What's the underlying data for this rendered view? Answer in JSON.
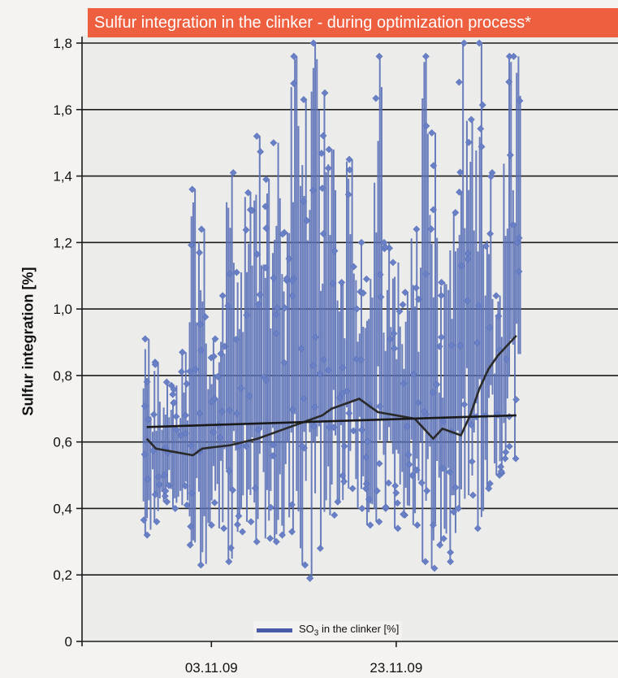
{
  "chart_data": {
    "type": "line",
    "title": "Sulfur integration in the clinker - during optimization process*",
    "ylabel": "Sulfur integration [%]",
    "xlabel": "",
    "ylim": [
      0,
      1.8
    ],
    "yticks": [
      0,
      0.2,
      0.4,
      0.6,
      0.8,
      1.0,
      1.2,
      1.4,
      1.6,
      1.8
    ],
    "ytick_labels": [
      "0",
      "0,2",
      "0,4",
      "0,6",
      "0,8",
      "1,0",
      "1,2",
      "1,4",
      "1,6",
      "1,8"
    ],
    "xlim": [
      "2009-10-20",
      "2009-12-17"
    ],
    "xticks": [
      "2009-11-03",
      "2009-11-23"
    ],
    "xtick_labels": [
      "03.11.09",
      "23.11.09"
    ],
    "grid": "horizontal",
    "legend_position": "bottom-center",
    "series": [
      {
        "name": "SO3 in the clinker [%]",
        "name_prefix": "SO",
        "name_subscript": "3",
        "name_suffix": " in the clinker [%]",
        "color": "#5b72b9",
        "markers": "diamond",
        "x": [
          "2009-10-27",
          "2009-10-28",
          "2009-10-29",
          "2009-10-30",
          "2009-10-31",
          "2009-11-01",
          "2009-11-02",
          "2009-11-03",
          "2009-11-04",
          "2009-11-05",
          "2009-11-06",
          "2009-11-07",
          "2009-11-08",
          "2009-11-09",
          "2009-11-10",
          "2009-11-11",
          "2009-11-12",
          "2009-11-13",
          "2009-11-14",
          "2009-11-15",
          "2009-11-16",
          "2009-11-17",
          "2009-11-18",
          "2009-11-19",
          "2009-11-20",
          "2009-11-21",
          "2009-11-22",
          "2009-11-23",
          "2009-11-24",
          "2009-11-25",
          "2009-11-26",
          "2009-11-27",
          "2009-11-28",
          "2009-11-29",
          "2009-11-30",
          "2009-12-01",
          "2009-12-02",
          "2009-12-03",
          "2009-12-04",
          "2009-12-05",
          "2009-12-06"
        ],
        "min": [
          0.32,
          0.36,
          0.42,
          0.4,
          0.41,
          0.29,
          0.23,
          0.35,
          0.34,
          0.24,
          0.33,
          0.36,
          0.3,
          0.31,
          0.3,
          0.32,
          0.33,
          0.23,
          0.19,
          0.28,
          0.38,
          0.42,
          0.46,
          0.4,
          0.35,
          0.36,
          0.4,
          0.34,
          0.38,
          0.35,
          0.24,
          0.22,
          0.29,
          0.24,
          0.4,
          0.44,
          0.34,
          0.46,
          0.5,
          0.55,
          0.55
        ],
        "max": [
          0.91,
          0.84,
          0.78,
          0.77,
          0.87,
          1.36,
          1.24,
          0.91,
          1.04,
          1.41,
          1.11,
          1.35,
          1.52,
          1.39,
          1.5,
          1.23,
          1.76,
          1.63,
          1.8,
          1.65,
          1.48,
          1.08,
          1.45,
          1.2,
          1.09,
          1.76,
          1.2,
          1.14,
          1.05,
          1.24,
          1.76,
          1.53,
          1.08,
          1.29,
          1.8,
          1.57,
          1.8,
          1.41,
          1.04,
          1.76,
          1.76
        ]
      },
      {
        "name": "",
        "style": "moving-average",
        "color": "#2a2a2a",
        "x": [
          "2009-10-27",
          "2009-10-28",
          "2009-10-30",
          "2009-11-01",
          "2009-11-02",
          "2009-11-05",
          "2009-11-08",
          "2009-11-11",
          "2009-11-13",
          "2009-11-15",
          "2009-11-16",
          "2009-11-18",
          "2009-11-19",
          "2009-11-20",
          "2009-11-21",
          "2009-11-23",
          "2009-11-25",
          "2009-11-26",
          "2009-11-27",
          "2009-11-28",
          "2009-11-29",
          "2009-11-30",
          "2009-12-01",
          "2009-12-02",
          "2009-12-03",
          "2009-12-04",
          "2009-12-05",
          "2009-12-06"
        ],
        "values": [
          0.61,
          0.58,
          0.57,
          0.56,
          0.58,
          0.59,
          0.61,
          0.64,
          0.66,
          0.68,
          0.7,
          0.72,
          0.73,
          0.71,
          0.69,
          0.68,
          0.67,
          0.64,
          0.61,
          0.64,
          0.63,
          0.62,
          0.68,
          0.76,
          0.82,
          0.86,
          0.89,
          0.92
        ]
      },
      {
        "name": "",
        "style": "linear-trend",
        "color": "#1a1a1a",
        "x": [
          "2009-10-27",
          "2009-12-06"
        ],
        "values": [
          0.645,
          0.68
        ]
      }
    ]
  }
}
